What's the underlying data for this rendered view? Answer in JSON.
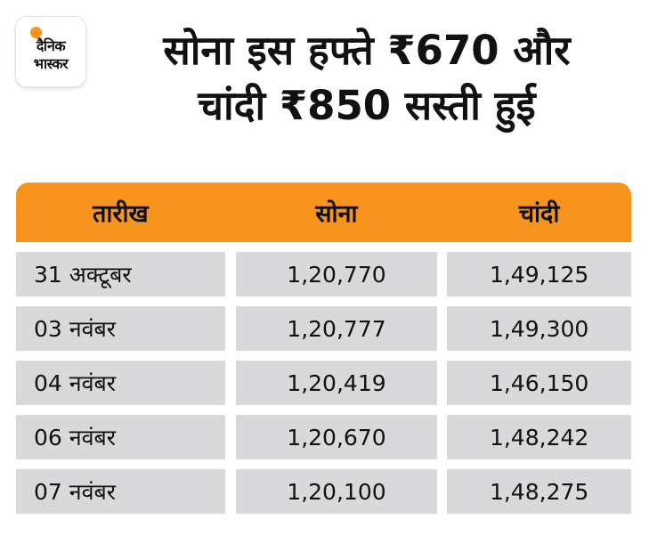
{
  "brand": {
    "logo_line1": "दैनिक",
    "logo_line2": "भास्कर",
    "accent_color": "#f7941d"
  },
  "headline": {
    "line1": "सोना इस हफ्ते ₹670 और",
    "line2": "चांदी ₹850 सस्ती हुई"
  },
  "table": {
    "headers": [
      "तारीख",
      "सोना",
      "चांदी"
    ],
    "rows": [
      {
        "date": "31 अक्टूबर",
        "gold": "1,20,770",
        "silver": "1,49,125"
      },
      {
        "date": "03 नवंबर",
        "gold": "1,20,777",
        "silver": "1,49,300"
      },
      {
        "date": "04 नवंबर",
        "gold": "1,20,419",
        "silver": "1,46,150"
      },
      {
        "date": "06 नवंबर",
        "gold": "1,20,670",
        "silver": "1,48,242"
      },
      {
        "date": "07 नवंबर",
        "gold": "1,20,100",
        "silver": "1,48,275"
      }
    ]
  }
}
